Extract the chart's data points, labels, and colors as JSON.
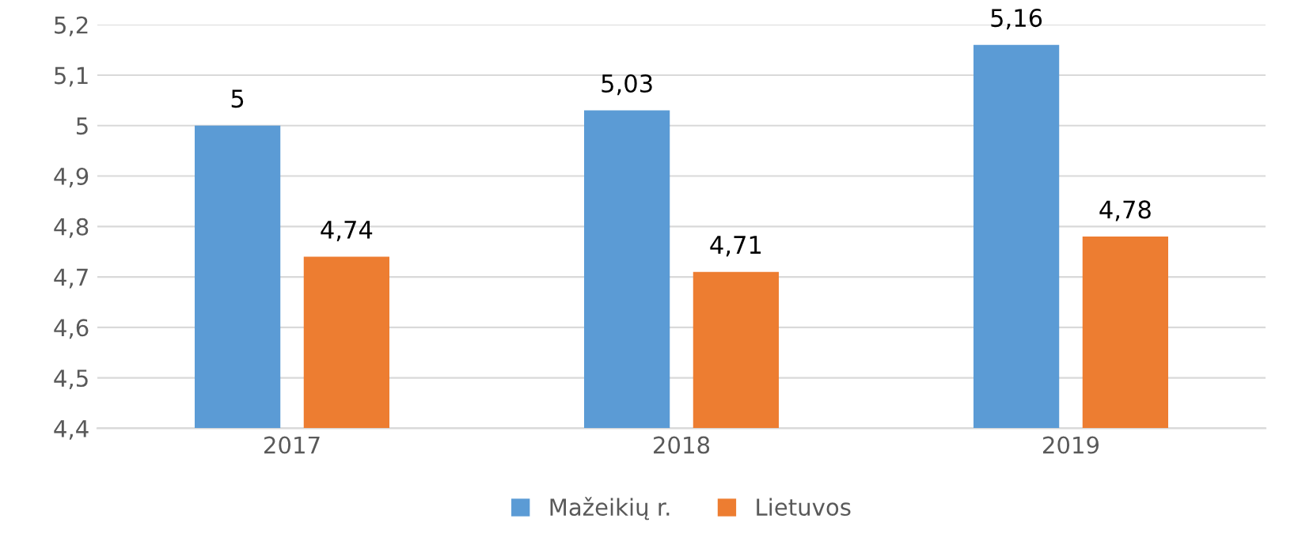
{
  "chart_data": {
    "type": "bar",
    "categories": [
      "2017",
      "2018",
      "2019"
    ],
    "series": [
      {
        "name": "Mažeikių r.",
        "color": "#5b9bd5",
        "values": [
          5,
          5.03,
          5.16
        ],
        "value_labels": [
          "5",
          "5,03",
          "5,16"
        ]
      },
      {
        "name": "Lietuvos",
        "color": "#ed7d31",
        "values": [
          4.74,
          4.71,
          4.78
        ],
        "value_labels": [
          "4,74",
          "4,71",
          "4,78"
        ]
      }
    ],
    "ylim": [
      4.4,
      5.2
    ],
    "yticks": [
      {
        "value": 4.4,
        "label": "4,4"
      },
      {
        "value": 4.5,
        "label": "4,5"
      },
      {
        "value": 4.6,
        "label": "4,6"
      },
      {
        "value": 4.7,
        "label": "4,7"
      },
      {
        "value": 4.8,
        "label": "4,8"
      },
      {
        "value": 4.9,
        "label": "4,9"
      },
      {
        "value": 5.0,
        "label": "5"
      },
      {
        "value": 5.1,
        "label": "5,1"
      },
      {
        "value": 5.2,
        "label": "5,2"
      }
    ],
    "grid": "y",
    "legend": "bottom"
  }
}
